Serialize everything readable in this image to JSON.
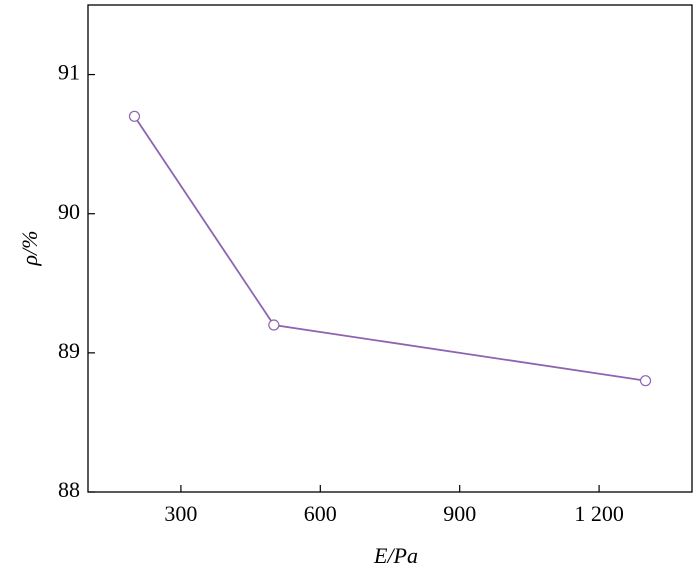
{
  "chart_data": {
    "type": "line",
    "x_label": "E/Pa",
    "y_label": "ρ/%",
    "x": [
      200,
      500,
      1300
    ],
    "series": [
      {
        "color": "#8e63b0",
        "values": [
          90.7,
          89.2,
          88.8
        ]
      }
    ],
    "xlim": [
      100,
      1400
    ],
    "xticks": [
      300,
      600,
      900,
      {
        "value": 1200,
        "label": "1 200"
      }
    ],
    "ylim": [
      88,
      91.5
    ],
    "yticks": [
      88,
      89,
      90,
      91
    ],
    "grid": false
  }
}
